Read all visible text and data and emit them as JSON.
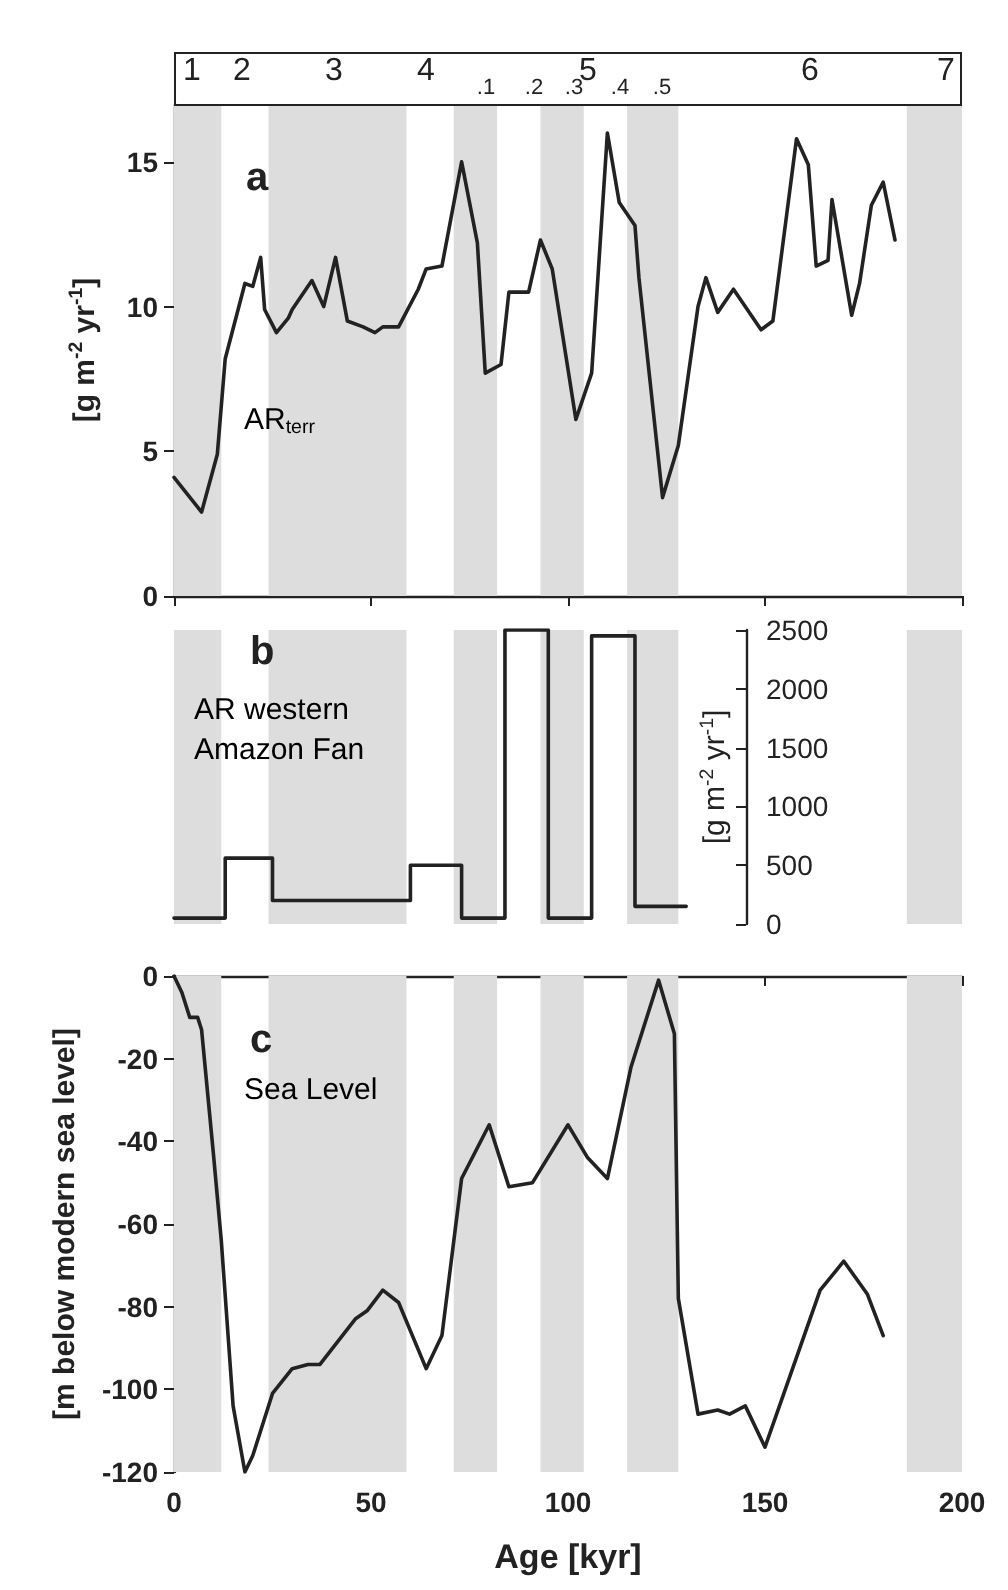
{
  "chart_data": [
    {
      "type": "line",
      "title": "a",
      "ylabel": "[g m$^{-2}$ yr$^{-1}$]",
      "x": [
        0,
        7,
        11,
        13,
        18,
        20,
        22,
        23,
        26,
        29,
        30,
        35,
        38,
        41,
        44,
        48,
        51,
        53,
        57,
        62,
        64,
        68,
        73,
        77,
        79,
        83,
        85,
        90,
        93,
        96,
        102,
        106,
        110,
        113,
        117,
        118,
        124,
        128,
        133,
        135,
        138,
        142,
        149,
        152,
        158,
        161,
        163,
        166,
        167,
        172,
        174,
        177,
        180,
        183
      ],
      "series": [
        {
          "name": "AR$_{terr}$",
          "color": "#222222",
          "values": [
            4.1,
            2.9,
            4.9,
            8.2,
            10.8,
            10.7,
            11.7,
            9.9,
            9.1,
            9.6,
            9.9,
            10.9,
            10.0,
            11.7,
            9.5,
            9.3,
            9.1,
            9.3,
            9.3,
            10.6,
            11.3,
            11.4,
            15.0,
            12.2,
            7.7,
            8.0,
            10.5,
            10.5,
            12.3,
            11.3,
            6.1,
            7.7,
            16.0,
            13.6,
            12.8,
            11.0,
            3.4,
            5.2,
            10.0,
            11.0,
            9.8,
            10.6,
            9.2,
            9.5,
            15.8,
            14.9,
            11.4,
            11.6,
            13.7,
            9.7,
            10.8,
            13.5,
            14.3,
            12.3
          ]
        }
      ],
      "xlim": [
        0,
        200
      ],
      "xticks": [
        0,
        50,
        100,
        150,
        200
      ],
      "ylim": [
        0,
        17
      ],
      "yticks": [
        0,
        5,
        10,
        15
      ],
      "tick_labels": "y",
      "marker": "none",
      "bands": [
        {
          "axis": "x",
          "from": 0,
          "to": 12,
          "color": "#dddddd"
        },
        {
          "axis": "x",
          "from": 24,
          "to": 59,
          "color": "#dddddd"
        },
        {
          "axis": "x",
          "from": 71,
          "to": 82,
          "color": "#dddddd"
        },
        {
          "axis": "x",
          "from": 93,
          "to": 104,
          "color": "#dddddd"
        },
        {
          "axis": "x",
          "from": 115,
          "to": 128,
          "color": "#dddddd"
        },
        {
          "axis": "x",
          "from": 186,
          "to": 200,
          "color": "#dddddd"
        }
      ],
      "annotations": [
        "1",
        "2",
        "3",
        "4",
        "5",
        "6",
        "7",
        ".1",
        ".2",
        ".3",
        ".4",
        ".5"
      ]
    },
    {
      "type": "step",
      "title": "b",
      "ylabel": "[g m$^{-2}$ yr$^{-1}$]",
      "x": [
        0,
        13,
        25,
        60,
        73,
        84,
        95,
        106,
        117,
        130
      ],
      "series": [
        {
          "name": "AR western Amazon Fan",
          "color": "#222222",
          "values": [
            50,
            560,
            200,
            500,
            50,
            2500,
            50,
            2450,
            150,
            150
          ]
        }
      ],
      "xlim": [
        0,
        200
      ],
      "ylim": [
        0,
        2500
      ],
      "yticks": [
        0,
        500,
        1000,
        1500,
        2000,
        2500
      ],
      "tick_labels": "y",
      "marker": "none",
      "bands": [
        {
          "axis": "x",
          "from": 0,
          "to": 12,
          "color": "#dddddd"
        },
        {
          "axis": "x",
          "from": 24,
          "to": 59,
          "color": "#dddddd"
        },
        {
          "axis": "x",
          "from": 71,
          "to": 82,
          "color": "#dddddd"
        },
        {
          "axis": "x",
          "from": 93,
          "to": 104,
          "color": "#dddddd"
        },
        {
          "axis": "x",
          "from": 115,
          "to": 128,
          "color": "#dddddd"
        },
        {
          "axis": "x",
          "from": 186,
          "to": 200,
          "color": "#dddddd"
        }
      ]
    },
    {
      "type": "line",
      "title": "c",
      "xlabel": "Age [kyr]",
      "ylabel": "[m below modern sea level]",
      "x": [
        0,
        2,
        4,
        6,
        7,
        10,
        12,
        15,
        18,
        20,
        25,
        30,
        34,
        37,
        46,
        49,
        53,
        57,
        64,
        68,
        73,
        80,
        85,
        91,
        100,
        105,
        110,
        116,
        123,
        127,
        128,
        133,
        138,
        141,
        145,
        150,
        157,
        164,
        170,
        176,
        180
      ],
      "series": [
        {
          "name": "Sea Level",
          "color": "#222222",
          "values": [
            0,
            -4,
            -10,
            -10,
            -13,
            -43,
            -64,
            -104,
            -120,
            -116,
            -101,
            -95,
            -94,
            -94,
            -83,
            -81,
            -76,
            -79,
            -95,
            -87,
            -49,
            -36,
            -51,
            -50,
            -36,
            -44,
            -49,
            -22,
            -1,
            -14,
            -78,
            -106,
            -105,
            -106,
            -104,
            -114,
            -95,
            -76,
            -69,
            -77,
            -87
          ]
        }
      ],
      "xlim": [
        0,
        200
      ],
      "xticks": [
        0,
        50,
        100,
        150,
        200
      ],
      "ylim": [
        -120,
        0
      ],
      "yticks": [
        -120,
        -100,
        -80,
        -60,
        -40,
        -20,
        0
      ],
      "marker": "none",
      "bands": [
        {
          "axis": "x",
          "from": 0,
          "to": 12,
          "color": "#dddddd"
        },
        {
          "axis": "x",
          "from": 24,
          "to": 59,
          "color": "#dddddd"
        },
        {
          "axis": "x",
          "from": 71,
          "to": 82,
          "color": "#dddddd"
        },
        {
          "axis": "x",
          "from": 93,
          "to": 104,
          "color": "#dddddd"
        },
        {
          "axis": "x",
          "from": 115,
          "to": 128,
          "color": "#dddddd"
        },
        {
          "axis": "x",
          "from": 186,
          "to": 200,
          "color": "#dddddd"
        }
      ]
    }
  ]
}
